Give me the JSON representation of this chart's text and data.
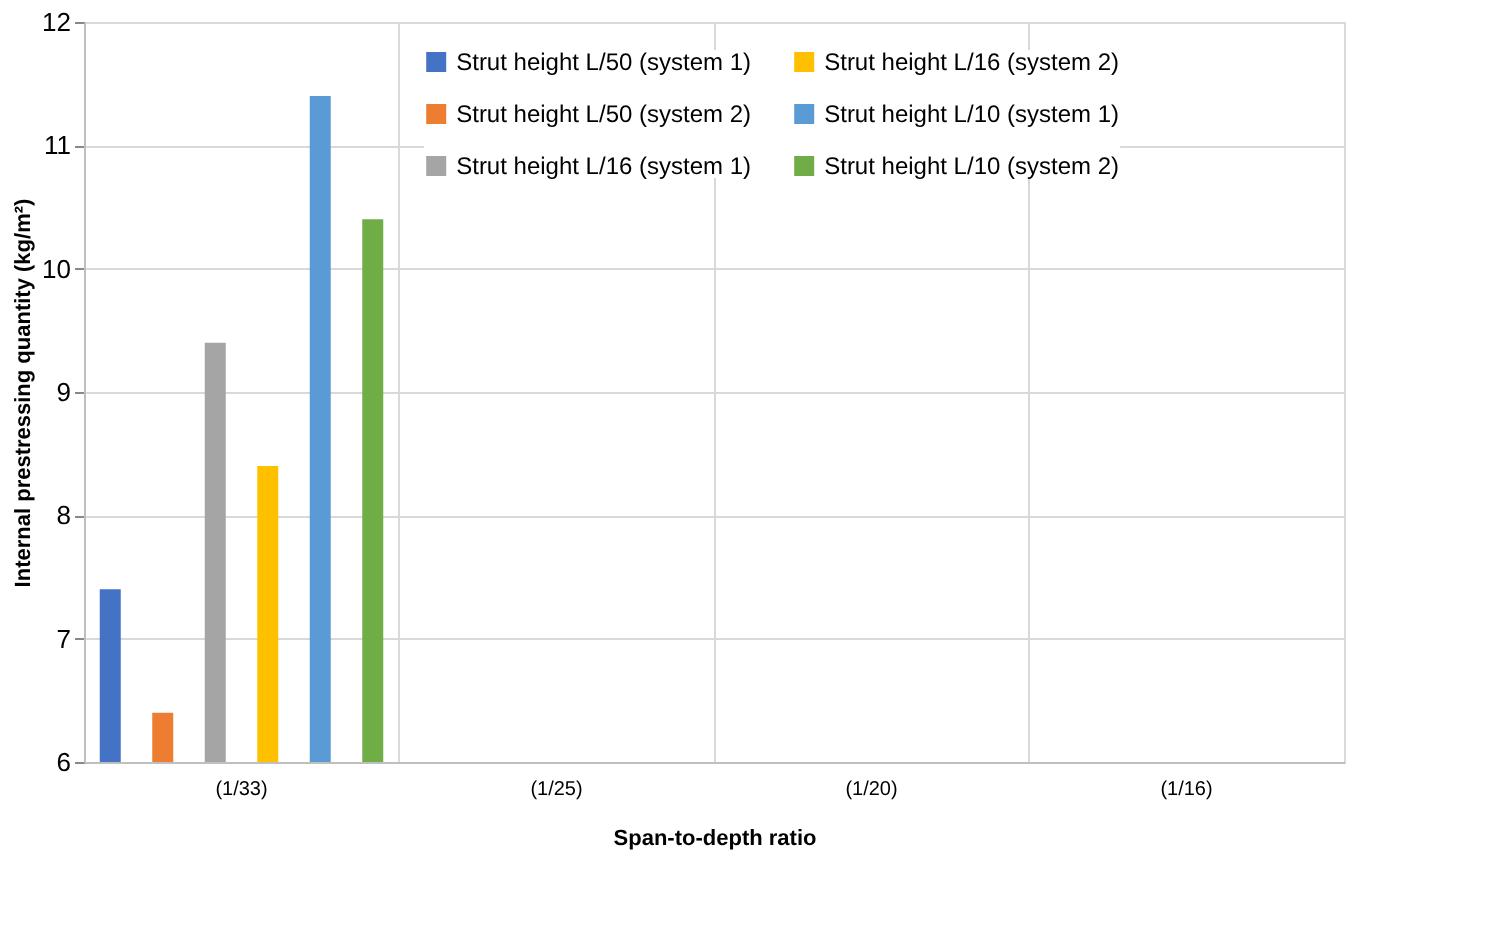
{
  "chart_data": {
    "type": "bar",
    "xlabel": "Span-to-depth ratio",
    "ylabel": "Internal prestressing quantity (kg/m²)",
    "categories": [
      "(1/33)",
      "(1/25)",
      "(1/20)",
      "(1/16)"
    ],
    "series": [
      {
        "name": "Strut height L/50 (system 1)",
        "color": "#4472c4",
        "values": [
          7.4,
          null,
          null,
          null
        ]
      },
      {
        "name": "Strut height L/50 (system 2)",
        "color": "#ed7d31",
        "values": [
          6.4,
          null,
          null,
          null
        ]
      },
      {
        "name": "Strut height L/16 (system 1)",
        "color": "#a5a5a5",
        "values": [
          9.4,
          null,
          null,
          null
        ]
      },
      {
        "name": "Strut height L/16 (system 2)",
        "color": "#ffc000",
        "values": [
          8.4,
          null,
          null,
          null
        ]
      },
      {
        "name": "Strut height L/10 (system 1)",
        "color": "#5b9bd5",
        "values": [
          11.4,
          null,
          null,
          null
        ]
      },
      {
        "name": "Strut height L/10 (system 2)",
        "color": "#70ad47",
        "values": [
          10.4,
          null,
          null,
          null
        ]
      }
    ],
    "ylim": [
      6,
      12
    ],
    "yticks": [
      6,
      7,
      8,
      9,
      10,
      11,
      12
    ],
    "grid": true,
    "legend": "top right"
  }
}
